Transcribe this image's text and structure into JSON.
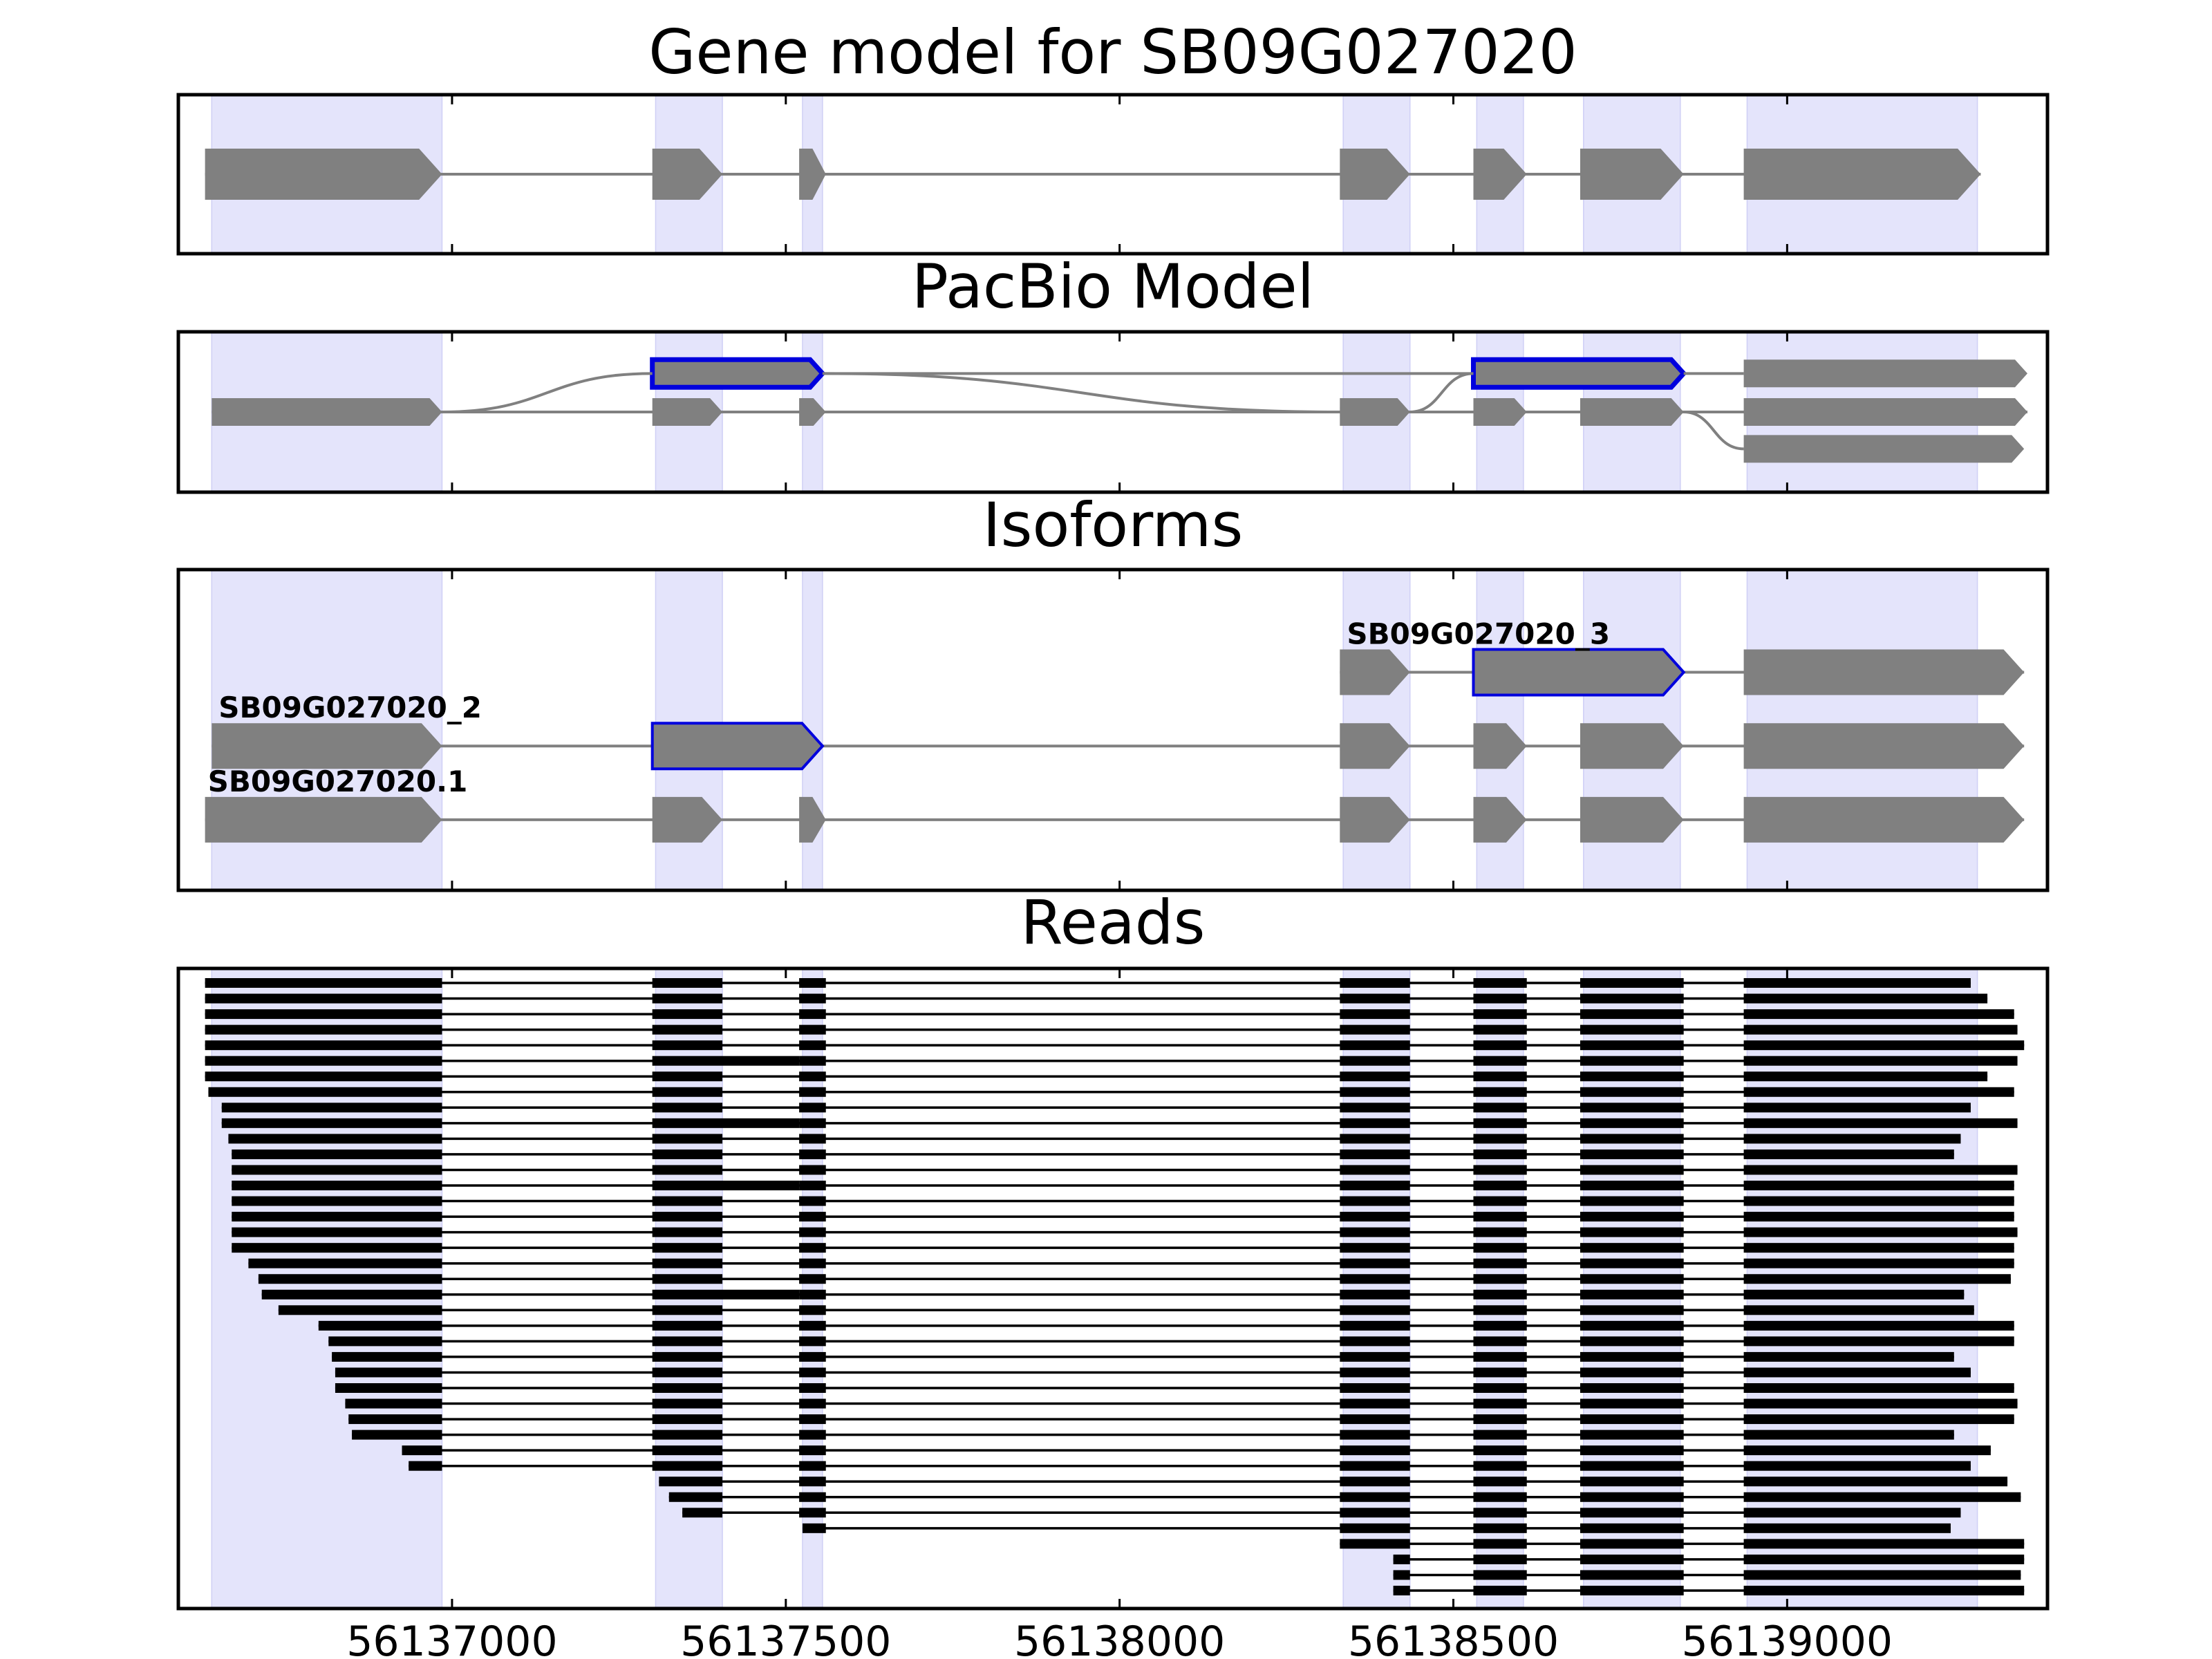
{
  "chart_data": {
    "type": "gene_structure",
    "colors": {
      "exon_fill": "#808080",
      "intron_line": "#808080",
      "highlight": "#0000dd",
      "shading": "#e4e4fb",
      "read": "#000000"
    },
    "x_axis": {
      "range": [
        56136590,
        56139390
      ],
      "ticks": [
        56137000,
        56137500,
        56138000,
        56138500,
        56139000
      ],
      "tick_labels": [
        "56137000",
        "56137500",
        "56138000",
        "56138500",
        "56139000"
      ]
    },
    "exon_regions": [
      [
        56136640,
        56136985
      ],
      [
        56137305,
        56137405
      ],
      [
        56137525,
        56137555
      ],
      [
        56138335,
        56138435
      ],
      [
        56138535,
        56138605
      ],
      [
        56138695,
        56138840
      ],
      [
        56138940,
        56139285
      ]
    ],
    "panels": [
      {
        "title": "Gene model for SB09G027020",
        "tracks": [
          {
            "y": 0.5,
            "exons": [
              [
                56136630,
                56136985
              ],
              [
                56137300,
                56137405
              ],
              [
                56137520,
                56137560
              ],
              [
                56138330,
                56138435
              ],
              [
                56138530,
                56138610
              ],
              [
                56138690,
                56138845
              ],
              [
                56138935,
                56139290
              ]
            ]
          }
        ]
      },
      {
        "title": "PacBio Model",
        "tracks": [
          {
            "y": 0.26,
            "exons": [
              [
                56137300,
                56137555
              ],
              [
                56138530,
                56138845
              ]
            ],
            "highlight": true
          },
          {
            "y": 0.5,
            "exons": [
              [
                56136640,
                56136985
              ],
              [
                56137300,
                56137405
              ],
              [
                56137520,
                56137560
              ],
              [
                56138330,
                56138435
              ],
              [
                56138530,
                56138610
              ],
              [
                56138690,
                56138845
              ],
              [
                56138935,
                56139360
              ]
            ]
          },
          {
            "y": 0.26,
            "exons": [
              [
                56138935,
                56139360
              ]
            ]
          },
          {
            "y": 0.73,
            "exons": [
              [
                56138935,
                56139355
              ]
            ]
          }
        ],
        "curves": [
          {
            "from": [
              56136985,
              0.5
            ],
            "to": [
              56137300,
              0.26
            ]
          },
          {
            "from": [
              56137555,
              0.26
            ],
            "to": [
              56138330,
              0.5
            ]
          },
          {
            "from": [
              56138435,
              0.5
            ],
            "to": [
              56138530,
              0.26
            ]
          },
          {
            "from": [
              56138845,
              0.5
            ],
            "to": [
              56138935,
              0.73
            ]
          }
        ],
        "lines": [
          {
            "from": [
              56138845,
              0.26
            ],
            "to": [
              56138935,
              0.26
            ]
          }
        ]
      },
      {
        "title": "Isoforms",
        "tracks": [
          {
            "y": 0.32,
            "label": "SB09G027020_3",
            "exons": [
              [
                56138330,
                56138435
              ],
              [
                56138530,
                56138845
              ],
              [
                56138935,
                56139355
              ]
            ],
            "highlight_exons": [
              1
            ]
          },
          {
            "y": 0.55,
            "label": "SB09G027020_2",
            "exons": [
              [
                56136640,
                56136985
              ],
              [
                56137300,
                56137555
              ],
              [
                56138330,
                56138435
              ],
              [
                56138530,
                56138610
              ],
              [
                56138690,
                56138845
              ],
              [
                56138935,
                56139355
              ]
            ],
            "highlight_exons": [
              1
            ]
          },
          {
            "y": 0.78,
            "label": "SB09G027020.1",
            "exons": [
              [
                56136630,
                56136985
              ],
              [
                56137300,
                56137405
              ],
              [
                56137520,
                56137560
              ],
              [
                56138330,
                56138435
              ],
              [
                56138530,
                56138610
              ],
              [
                56138690,
                56138845
              ],
              [
                56138935,
                56139355
              ]
            ]
          }
        ]
      },
      {
        "title": "Reads",
        "reads": [
          {
            "start": 56136630,
            "end": 56139275,
            "e2": 56137405
          },
          {
            "start": 56136630,
            "end": 56139300,
            "e2": 56137405
          },
          {
            "start": 56136630,
            "end": 56139340,
            "e2": 56137405
          },
          {
            "start": 56136630,
            "end": 56139345,
            "e2": 56137405
          },
          {
            "start": 56136630,
            "end": 56139355,
            "e2": 56137405
          },
          {
            "start": 56136630,
            "end": 56139345,
            "e2": 56137520
          },
          {
            "start": 56136630,
            "end": 56139300,
            "e2": 56137405
          },
          {
            "start": 56136635,
            "end": 56139340,
            "e2": 56137405
          },
          {
            "start": 56136655,
            "end": 56139275,
            "e2": 56137405
          },
          {
            "start": 56136655,
            "end": 56139345,
            "e2": 56137520
          },
          {
            "start": 56136665,
            "end": 56139260,
            "e2": 56137405
          },
          {
            "start": 56136670,
            "end": 56139250,
            "e2": 56137405
          },
          {
            "start": 56136670,
            "end": 56139345,
            "e2": 56137405
          },
          {
            "start": 56136670,
            "end": 56139340,
            "e2": 56137520
          },
          {
            "start": 56136670,
            "end": 56139340,
            "e2": 56137405
          },
          {
            "start": 56136670,
            "end": 56139340,
            "e2": 56137405
          },
          {
            "start": 56136670,
            "end": 56139345,
            "e2": 56137405
          },
          {
            "start": 56136670,
            "end": 56139340,
            "e2": 56137405
          },
          {
            "start": 56136695,
            "end": 56139340,
            "e2": 56137405
          },
          {
            "start": 56136710,
            "end": 56139335,
            "e2": 56137405
          },
          {
            "start": 56136715,
            "end": 56139265,
            "e2": 56137520
          },
          {
            "start": 56136740,
            "end": 56139280,
            "e2": 56137405
          },
          {
            "start": 56136800,
            "end": 56139340,
            "e2": 56137405
          },
          {
            "start": 56136815,
            "end": 56139340,
            "e2": 56137405
          },
          {
            "start": 56136820,
            "end": 56139250,
            "e2": 56137405
          },
          {
            "start": 56136825,
            "end": 56139275,
            "e2": 56137405
          },
          {
            "start": 56136825,
            "end": 56139340,
            "e2": 56137405
          },
          {
            "start": 56136840,
            "end": 56139345,
            "e2": 56137405
          },
          {
            "start": 56136845,
            "end": 56139340,
            "e2": 56137405
          },
          {
            "start": 56136850,
            "end": 56139250,
            "e2": 56137405
          },
          {
            "start": 56136925,
            "end": 56139305,
            "e2": 56137405
          },
          {
            "start": 56136935,
            "end": 56139275,
            "e2": 56137405
          },
          {
            "start": 56137310,
            "end": 56139330,
            "e2": 56137405
          },
          {
            "start": 56137325,
            "end": 56139350,
            "e2": 56137405
          },
          {
            "start": 56137345,
            "end": 56139260,
            "e2": 56137405
          },
          {
            "start": 56137525,
            "end": 56139245,
            "e2": 56137405
          },
          {
            "start": 56138330,
            "end": 56139355
          },
          {
            "start": 56138410,
            "end": 56139355
          },
          {
            "start": 56138410,
            "end": 56139350
          },
          {
            "start": 56138410,
            "end": 56139355
          }
        ]
      }
    ]
  }
}
